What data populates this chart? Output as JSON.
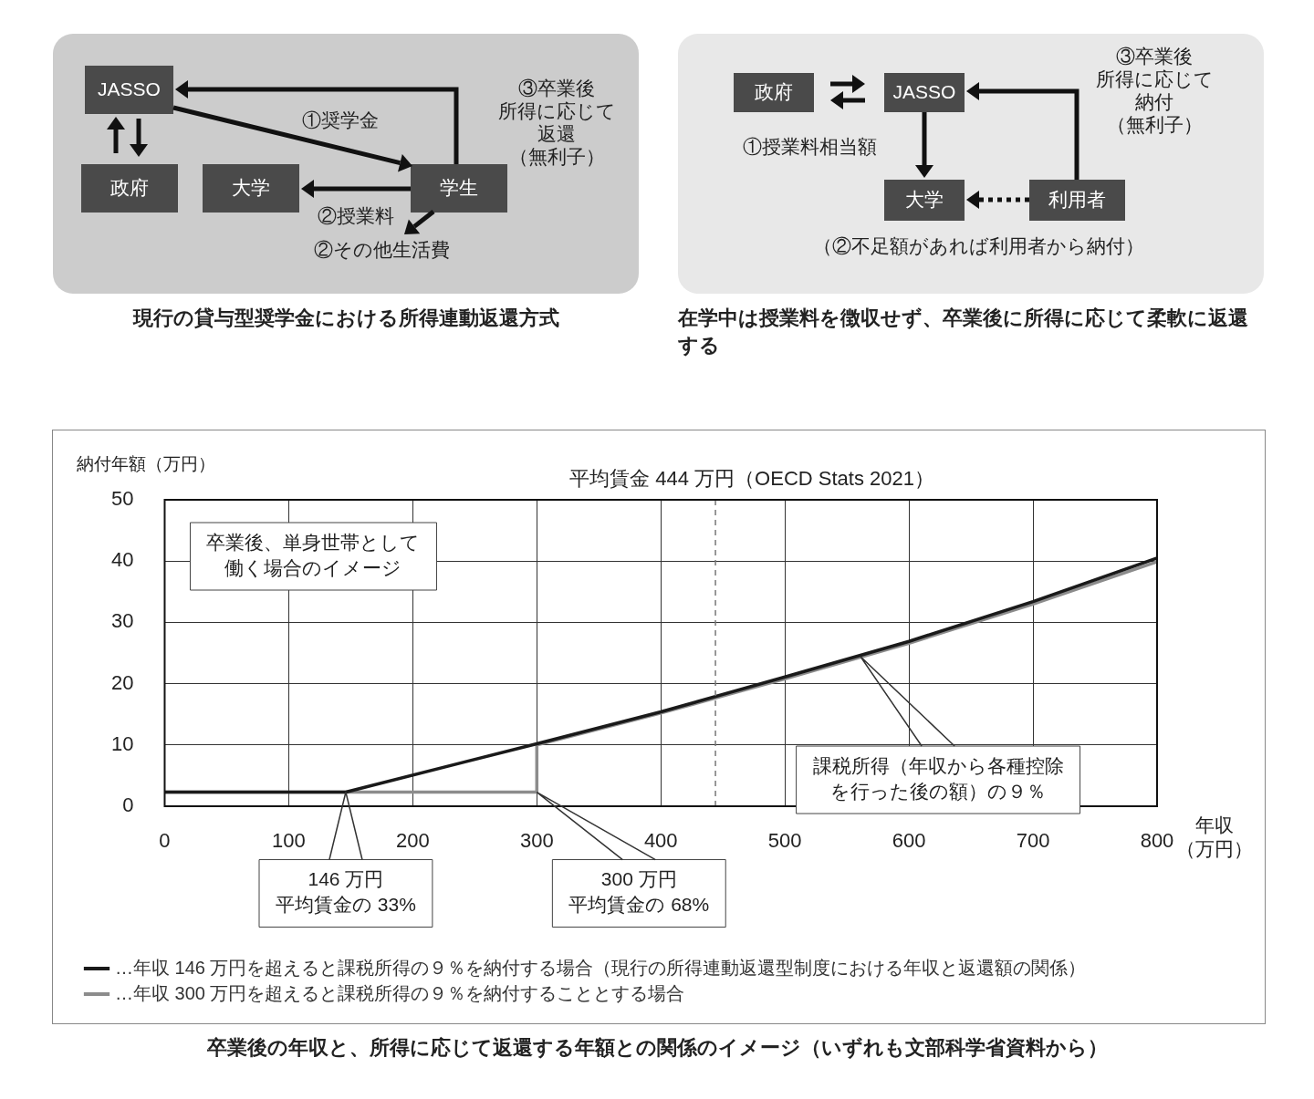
{
  "chart_data": [
    {
      "type": "other",
      "title": "現行の貸与型奨学金における所得連動返還方式",
      "annotations": [
        "JASSO",
        "政府",
        "大学",
        "学生",
        "①奨学金",
        "②授業料",
        "②その他生活費",
        "③卒業後所得に応じて返還（無利子）"
      ]
    },
    {
      "type": "other",
      "title": "在学中は授業料を徴収せず、卒業後に所得に応じて柔軟に返還する",
      "annotations": [
        "政府",
        "JASSO",
        "大学",
        "利用者",
        "①授業料相当額",
        "③卒業後所得に応じて納付（無利子）",
        "（②不足額があれば利用者から納付）"
      ]
    },
    {
      "type": "line",
      "title": "卒業後の年収と、所得に応じて返還する年額との関係のイメージ（いずれも文部科学省資料から）",
      "xlabel": "年収（万円）",
      "ylabel": "納付年額（万円）",
      "xlim": [
        0,
        800
      ],
      "xticks": [
        0,
        100,
        200,
        300,
        400,
        500,
        600,
        700,
        800
      ],
      "ylim": [
        0,
        50
      ],
      "yticks": [
        0,
        10,
        20,
        30,
        40,
        50
      ],
      "grid": true,
      "legend": "bottom",
      "marker": "none",
      "series": [
        {
          "name": "…年収 146 万円を超えると課税所得の９％を納付する場合（現行の所得連動返還型制度における年収と返還額の関係）",
          "color": "#1a1a1a",
          "x": [
            0,
            146,
            300,
            400,
            500,
            600,
            700,
            800
          ],
          "values": [
            2.3,
            2.3,
            10.2,
            15.4,
            21.1,
            26.9,
            33.4,
            40.5
          ]
        },
        {
          "name": "…年収 300 万円を超えると課税所得の９％を納付することとする場合",
          "color": "#8c8c8c",
          "x": [
            0,
            300,
            300,
            400,
            500,
            600,
            700,
            800
          ],
          "values": [
            2.3,
            2.3,
            10.0,
            15.2,
            20.8,
            26.6,
            33.0,
            39.9
          ]
        }
      ],
      "ref_lines": [
        {
          "axis": "x",
          "value": 444,
          "label": "平均賃金 444 万円（OECD Stats 2021）",
          "color": "#777777",
          "line_style": "dashed"
        }
      ],
      "annotations": [
        "卒業後、単身世帯として働く場合のイメージ",
        "146 万円平均賃金の 33%",
        "300 万円平均賃金の 68%",
        "課税所得（年収から各種控除を行った後の額）の９％"
      ]
    }
  ]
}
